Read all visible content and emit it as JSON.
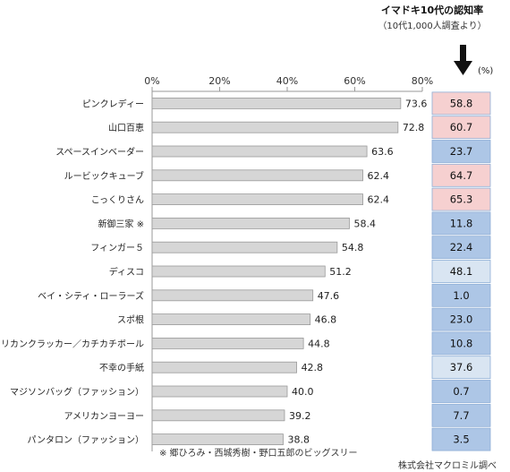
{
  "panel": {
    "title": "イマドキ10代の認知率",
    "subtitle": "（10代1,000人調査より）",
    "unit": "(%)"
  },
  "footnote": "※ 郷ひろみ・西城秀樹・野口五郎のビッグスリー",
  "credit": "株式会社マクロミル調べ",
  "colors": {
    "bar_fill": "#d6d6d6",
    "bar_stroke": "#9a9a9a",
    "high": "#f6d0d0",
    "mid": "#d9e5f2",
    "low": "#adc6e6",
    "cell_border": "#8eaed6"
  },
  "chart_data": {
    "type": "bar",
    "orientation": "horizontal",
    "xlim": [
      0,
      80
    ],
    "x_ticks": [
      "0%",
      "20%",
      "40%",
      "60%",
      "80%"
    ],
    "grid": false,
    "categories": [
      "ピンクレディー",
      "山口百恵",
      "スペースインベーダー",
      "ルービックキューブ",
      "こっくりさん",
      "新御三家 ※",
      "フィンガー５",
      "ディスコ",
      "ベイ・シティ・ローラーズ",
      "スポ根",
      "アメリカンクラッカー／カチカチボール",
      "不幸の手紙",
      "マジソンバッグ（ファッション）",
      "アメリカンヨーヨー",
      "パンタロン（ファッション）"
    ],
    "values": [
      73.6,
      72.8,
      63.6,
      62.4,
      62.4,
      58.4,
      54.8,
      51.2,
      47.6,
      46.8,
      44.8,
      42.8,
      40.0,
      39.2,
      38.8
    ],
    "value_labels": [
      "73.6",
      "72.8",
      "63.6",
      "62.4",
      "62.4",
      "58.4",
      "54.8",
      "51.2",
      "47.6",
      "46.8",
      "44.8",
      "42.8",
      "40.0",
      "39.2",
      "38.8"
    ],
    "teen_awareness": [
      "58.8",
      "60.7",
      "23.7",
      "64.7",
      "65.3",
      "11.8",
      "22.4",
      "48.1",
      "1.0",
      "23.0",
      "10.8",
      "37.6",
      "0.7",
      "7.7",
      "3.5"
    ],
    "teen_levels": [
      "high",
      "high",
      "low",
      "high",
      "high",
      "low",
      "low",
      "mid",
      "low",
      "low",
      "low",
      "mid",
      "low",
      "low",
      "low"
    ]
  }
}
